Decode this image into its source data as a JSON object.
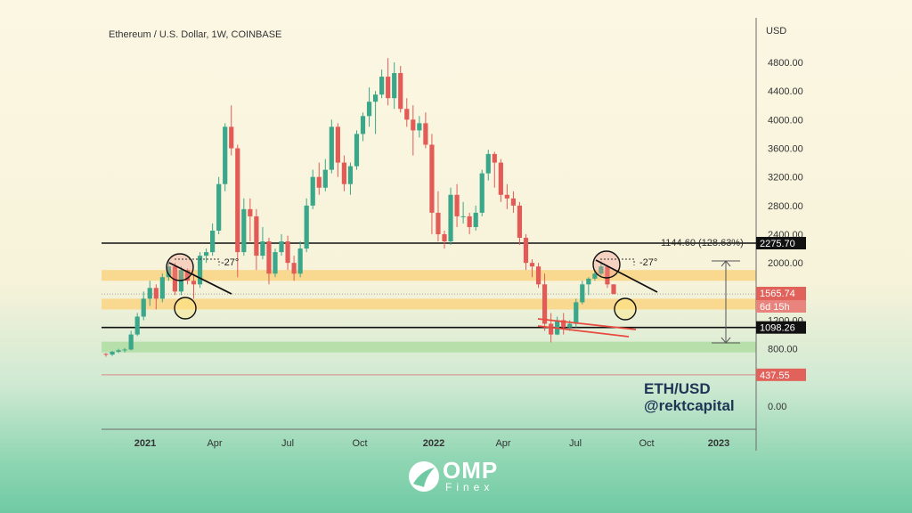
{
  "chart_data": {
    "type": "candlestick",
    "title": "Ethereum / U.S. Dollar, 1W, COINBASE",
    "currency_label": "USD",
    "y_ticks": [
      "4800.00",
      "4400.00",
      "4000.00",
      "3600.00",
      "3200.00",
      "2800.00",
      "2400.00",
      "2000.00",
      "1200.00",
      "800.00",
      "0.00"
    ],
    "x_ticks": [
      "2021",
      "Apr",
      "Jul",
      "Oct",
      "2022",
      "Apr",
      "Jul",
      "Oct",
      "2023"
    ],
    "ylim": [
      0,
      5000
    ],
    "grid": false,
    "candles": [
      [
        730,
        740,
        690,
        720
      ],
      [
        720,
        770,
        700,
        760
      ],
      [
        760,
        800,
        740,
        780
      ],
      [
        780,
        810,
        750,
        790
      ],
      [
        790,
        1050,
        780,
        1000
      ],
      [
        1000,
        1300,
        980,
        1250
      ],
      [
        1250,
        1600,
        1200,
        1500
      ],
      [
        1500,
        1750,
        1400,
        1650
      ],
      [
        1650,
        1700,
        1350,
        1500
      ],
      [
        1500,
        1850,
        1450,
        1800
      ],
      [
        1800,
        2050,
        1750,
        1950
      ],
      [
        1950,
        2000,
        1550,
        1600
      ],
      [
        1600,
        1950,
        1550,
        1900
      ],
      [
        1900,
        1920,
        1700,
        1750
      ],
      [
        1750,
        1850,
        1500,
        1700
      ],
      [
        1700,
        2150,
        1650,
        2100
      ],
      [
        2100,
        2200,
        2000,
        2150
      ],
      [
        2150,
        2550,
        2100,
        2450
      ],
      [
        2450,
        3200,
        2400,
        3100
      ],
      [
        3100,
        3950,
        3000,
        3900
      ],
      [
        3900,
        4200,
        3500,
        3600
      ],
      [
        3600,
        3650,
        1800,
        2150
      ],
      [
        2150,
        2900,
        2100,
        2750
      ],
      [
        2750,
        2900,
        2300,
        2650
      ],
      [
        2650,
        2750,
        1900,
        2100
      ],
      [
        2100,
        2500,
        2050,
        2300
      ],
      [
        2300,
        2350,
        1700,
        1850
      ],
      [
        1850,
        2200,
        1800,
        2150
      ],
      [
        2150,
        2400,
        2100,
        2300
      ],
      [
        2300,
        2380,
        1900,
        2000
      ],
      [
        2000,
        2100,
        1750,
        1850
      ],
      [
        1850,
        2300,
        1800,
        2200
      ],
      [
        2200,
        2900,
        2150,
        2800
      ],
      [
        2800,
        3300,
        2750,
        3200
      ],
      [
        3200,
        3400,
        2950,
        3050
      ],
      [
        3050,
        3450,
        3000,
        3300
      ],
      [
        3300,
        4000,
        3250,
        3900
      ],
      [
        3900,
        3950,
        3200,
        3400
      ],
      [
        3400,
        3500,
        3000,
        3100
      ],
      [
        3100,
        3400,
        2950,
        3350
      ],
      [
        3350,
        3850,
        3300,
        3800
      ],
      [
        3800,
        4100,
        3700,
        4050
      ],
      [
        4050,
        4450,
        3900,
        4250
      ],
      [
        4250,
        4400,
        3800,
        4350
      ],
      [
        4350,
        4700,
        4300,
        4600
      ],
      [
        4600,
        4860,
        4200,
        4300
      ],
      [
        4300,
        4800,
        4150,
        4650
      ],
      [
        4650,
        4750,
        4100,
        4150
      ],
      [
        4150,
        4300,
        3900,
        4000
      ],
      [
        4000,
        4200,
        3500,
        3850
      ],
      [
        3850,
        4050,
        3750,
        3950
      ],
      [
        3950,
        4100,
        3600,
        3650
      ],
      [
        3650,
        3800,
        2400,
        2700
      ],
      [
        2700,
        3000,
        2300,
        2400
      ],
      [
        2400,
        2450,
        2200,
        2300
      ],
      [
        2300,
        3050,
        2250,
        2950
      ],
      [
        2950,
        3100,
        2500,
        2650
      ],
      [
        2650,
        2850,
        2550,
        2650
      ],
      [
        2650,
        2700,
        2400,
        2500
      ],
      [
        2500,
        2800,
        2450,
        2700
      ],
      [
        2700,
        3300,
        2650,
        3250
      ],
      [
        3250,
        3580,
        3150,
        3520
      ],
      [
        3520,
        3550,
        3050,
        3400
      ],
      [
        3400,
        3450,
        2850,
        2950
      ],
      [
        2950,
        3100,
        2750,
        2900
      ],
      [
        2900,
        3000,
        2700,
        2800
      ],
      [
        2800,
        2850,
        2250,
        2350
      ],
      [
        2350,
        2400,
        1900,
        2000
      ],
      [
        2000,
        2050,
        1800,
        1950
      ],
      [
        1950,
        2000,
        1650,
        1700
      ],
      [
        1700,
        1850,
        1050,
        1150
      ],
      [
        1150,
        1300,
        890,
        1000
      ],
      [
        1000,
        1250,
        990,
        1200
      ],
      [
        1200,
        1300,
        1000,
        1100
      ],
      [
        1100,
        1200,
        1050,
        1150
      ],
      [
        1150,
        1500,
        1100,
        1450
      ],
      [
        1450,
        1750,
        1420,
        1700
      ],
      [
        1700,
        1800,
        1550,
        1780
      ],
      [
        1780,
        1900,
        1750,
        1850
      ],
      [
        1850,
        2020,
        1830,
        1950
      ],
      [
        1950,
        1960,
        1650,
        1700
      ],
      [
        1700,
        1700,
        1560,
        1566
      ]
    ],
    "levels": [
      {
        "label": "2275.70",
        "value": 2275.7,
        "tag_color": "#111111"
      },
      {
        "label": "1098.26",
        "value": 1098.26,
        "tag_color": "#111111"
      },
      {
        "label": "437.55",
        "value": 437.55,
        "tag_color": "#e0625b"
      }
    ],
    "current_price": "1565.74",
    "countdown": "6d 15h",
    "zones": [
      {
        "from": 1750,
        "to": 1900,
        "color": "#f9d98f"
      },
      {
        "from": 1350,
        "to": 1500,
        "color": "#f9d98f"
      },
      {
        "from": 750,
        "to": 900,
        "color": "#b7dfaa"
      }
    ],
    "measure_label": "1144.60 (128.63%)",
    "angle_label": "-27°",
    "watermark": [
      "ETH/USD",
      "@rektcapital"
    ]
  },
  "brand": {
    "name": "OMP",
    "sub": "Finex"
  }
}
